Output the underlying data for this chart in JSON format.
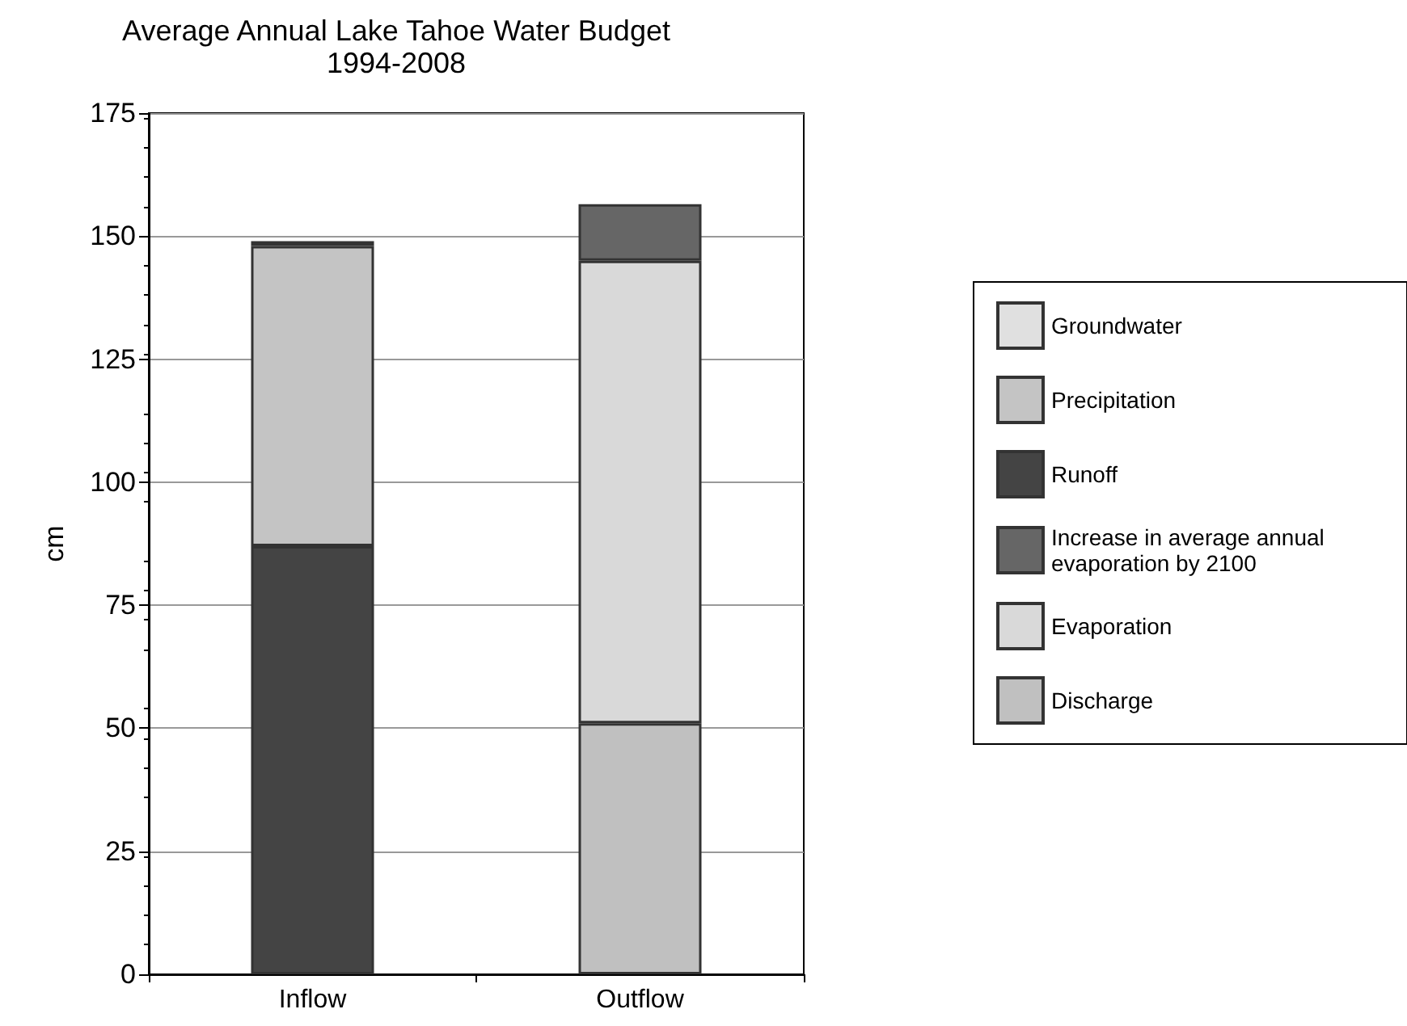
{
  "chart_data": {
    "type": "bar",
    "title": "Average Annual Lake Tahoe Water Budget",
    "subtitle": "1994-2008",
    "ylabel": "cm",
    "categories": [
      "Inflow",
      "Outflow"
    ],
    "stacked": true,
    "series": [
      {
        "name": "Discharge",
        "color": "#c0c0c0",
        "values": [
          null,
          51
        ]
      },
      {
        "name": "Evaporation",
        "color": "#d9d9d9",
        "values": [
          null,
          94
        ]
      },
      {
        "name": "Increase in average annual evaporation by 2100",
        "color": "#666666",
        "values": [
          null,
          11.5
        ]
      },
      {
        "name": "Runoff",
        "color": "#444444",
        "values": [
          87,
          null
        ]
      },
      {
        "name": "Precipitation",
        "color": "#c4c4c4",
        "values": [
          61,
          null
        ]
      },
      {
        "name": "Groundwater",
        "color": "#e0e0e0",
        "values": [
          1,
          null
        ]
      }
    ],
    "ylim": [
      0,
      175
    ],
    "yticks": [
      0,
      25,
      50,
      75,
      100,
      125,
      150,
      175
    ],
    "grid": "y",
    "legend": "right"
  }
}
